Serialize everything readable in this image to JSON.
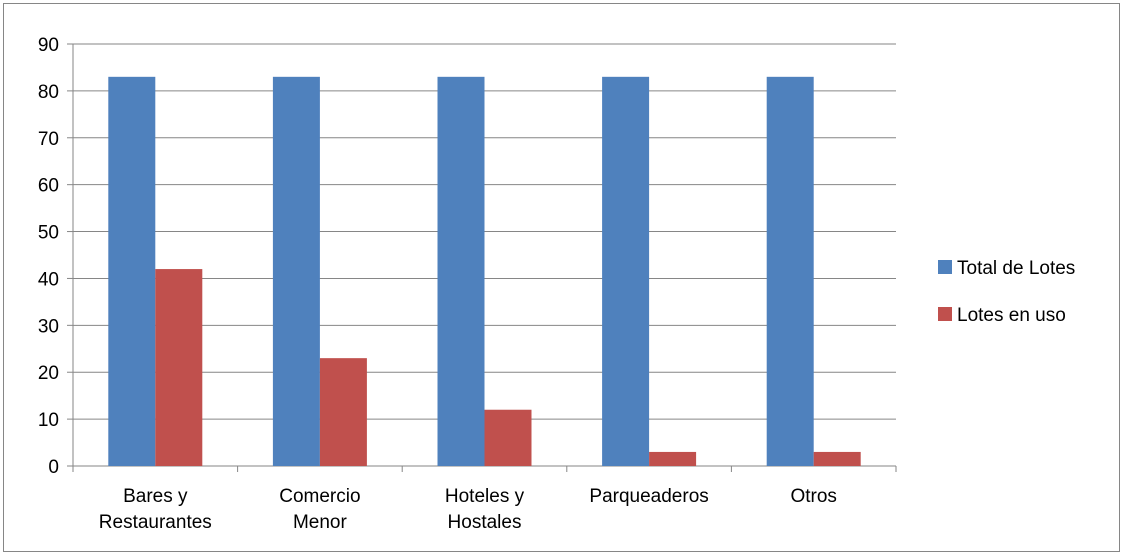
{
  "chart_data": {
    "type": "bar",
    "categories": [
      [
        "Bares y",
        "Restaurantes"
      ],
      [
        "Comercio",
        "Menor"
      ],
      [
        "Hoteles y",
        "Hostales"
      ],
      [
        "Parqueaderos"
      ],
      [
        "Otros"
      ]
    ],
    "series": [
      {
        "name": "Total de Lotes",
        "values": [
          83,
          83,
          83,
          83,
          83
        ],
        "color": "#4F81BD"
      },
      {
        "name": "Lotes en uso",
        "values": [
          42,
          23,
          12,
          3,
          3
        ],
        "color": "#C0504D"
      }
    ],
    "ylim": [
      0,
      90
    ],
    "yticks": [
      0,
      10,
      20,
      30,
      40,
      50,
      60,
      70,
      80,
      90
    ],
    "grid": true,
    "legend_position": "right"
  }
}
